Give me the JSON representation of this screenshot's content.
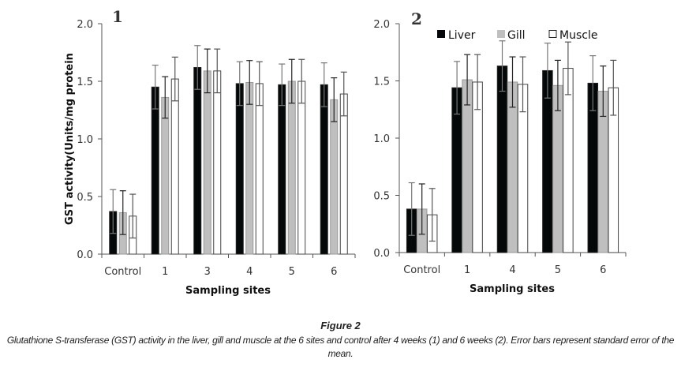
{
  "figure": {
    "title": "Figure 2",
    "caption": "Glutathione S-transferase (GST) activity in the liver, gill and muscle at the 6 sites and control after 4 weeks (1) and 6 weeks (2). Error bars represent standard error of the mean."
  },
  "colors": {
    "liver": "#050808",
    "gill": "#bfbfbf",
    "muscle": "#ffffff",
    "axis": "#555555",
    "error_bar_liver": "#777777",
    "error_bar_gill": "#222222",
    "error_bar_muscle": "#555555"
  },
  "chart_data": [
    {
      "type": "bar",
      "panel_label": "1",
      "title": "",
      "xlabel": "Sampling sites",
      "ylabel": "GST activity(Units/mg protein",
      "ylim": [
        0,
        2.0
      ],
      "yticks": [
        "0.0",
        "0.5",
        "1.0",
        "1.5",
        "2.0"
      ],
      "grid": false,
      "legend": null,
      "categories": [
        "Control",
        "1",
        "3",
        "4",
        "5",
        "6"
      ],
      "series": [
        {
          "name": "Liver",
          "values": [
            0.37,
            1.45,
            1.62,
            1.48,
            1.47,
            1.47
          ],
          "error": [
            0.19,
            0.19,
            0.19,
            0.19,
            0.18,
            0.19
          ]
        },
        {
          "name": "Gill",
          "values": [
            0.36,
            1.36,
            1.59,
            1.49,
            1.5,
            1.34
          ],
          "error": [
            0.19,
            0.18,
            0.19,
            0.19,
            0.19,
            0.19
          ]
        },
        {
          "name": "Muscle",
          "values": [
            0.33,
            1.52,
            1.59,
            1.48,
            1.5,
            1.39
          ],
          "error": [
            0.19,
            0.19,
            0.19,
            0.19,
            0.19,
            0.19
          ]
        }
      ]
    },
    {
      "type": "bar",
      "panel_label": "2",
      "title": "",
      "xlabel": "Sampling sites",
      "ylabel": "",
      "ylim": [
        0,
        2.0
      ],
      "yticks": [
        "0.0",
        "0.5",
        "1.0",
        "1.5",
        "2.0"
      ],
      "grid": false,
      "legend": "top",
      "categories": [
        "Control",
        "1",
        "4",
        "5",
        "6"
      ],
      "series": [
        {
          "name": "Liver",
          "values": [
            0.38,
            1.44,
            1.63,
            1.59,
            1.48
          ],
          "error": [
            0.23,
            0.23,
            0.22,
            0.24,
            0.24
          ]
        },
        {
          "name": "Gill",
          "values": [
            0.38,
            1.51,
            1.49,
            1.46,
            1.41
          ],
          "error": [
            0.22,
            0.22,
            0.22,
            0.22,
            0.22
          ]
        },
        {
          "name": "Muscle",
          "values": [
            0.33,
            1.49,
            1.47,
            1.61,
            1.44
          ],
          "error": [
            0.23,
            0.24,
            0.24,
            0.23,
            0.24
          ]
        }
      ]
    }
  ]
}
